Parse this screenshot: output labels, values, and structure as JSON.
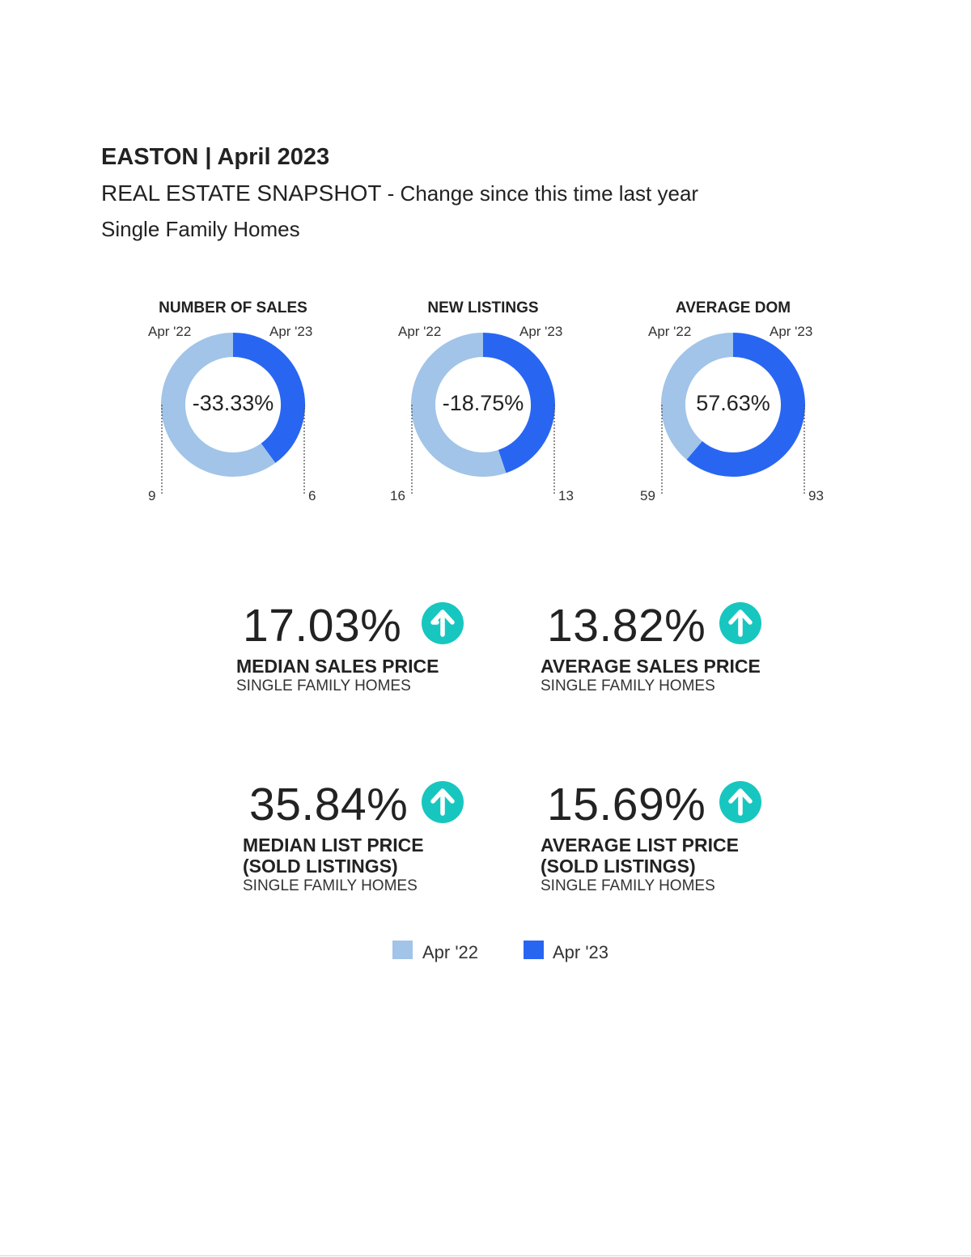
{
  "header": {
    "title": "EASTON | April 2023",
    "subtitle_main": "REAL ESTATE SNAPSHOT",
    "subtitle_rest": " - Change since this time last year",
    "category": "Single Family Homes"
  },
  "colors": {
    "prior": "#a1c4e8",
    "current": "#2866f2",
    "arrow": "#18c6c0"
  },
  "chart_data": [
    {
      "type": "pie",
      "title": "NUMBER OF SALES",
      "categories": [
        "Apr '22",
        "Apr '23"
      ],
      "values": [
        9,
        6
      ],
      "center_label": "-33.33%",
      "value_labels": [
        "9",
        "6"
      ]
    },
    {
      "type": "pie",
      "title": "NEW LISTINGS",
      "categories": [
        "Apr '22",
        "Apr '23"
      ],
      "values": [
        16,
        13
      ],
      "center_label": "-18.75%",
      "value_labels": [
        "16",
        "13"
      ]
    },
    {
      "type": "pie",
      "title": "AVERAGE DOM",
      "categories": [
        "Apr '22",
        "Apr '23"
      ],
      "values": [
        59,
        93
      ],
      "center_label": "57.63%",
      "value_labels": [
        "59",
        "93"
      ]
    }
  ],
  "kpis": [
    {
      "value": "17.03%",
      "label_line1": "MEDIAN SALES PRICE",
      "label_line2": "",
      "sub": "SINGLE FAMILY HOMES",
      "arrow": "up-arrow-icon"
    },
    {
      "value": "13.82%",
      "label_line1": "AVERAGE SALES PRICE",
      "label_line2": "",
      "sub": "SINGLE FAMILY HOMES",
      "arrow": "up-arrow-icon"
    },
    {
      "value": "35.84%",
      "label_line1": "MEDIAN LIST PRICE",
      "label_line2": "(SOLD LISTINGS)",
      "sub": "SINGLE FAMILY HOMES",
      "arrow": "up-arrow-icon"
    },
    {
      "value": "15.69%",
      "label_line1": "AVERAGE LIST PRICE",
      "label_line2": "(SOLD LISTINGS)",
      "sub": "SINGLE FAMILY HOMES",
      "arrow": "up-arrow-icon"
    }
  ],
  "legend": [
    {
      "label": "Apr '22"
    },
    {
      "label": "Apr '23"
    }
  ]
}
